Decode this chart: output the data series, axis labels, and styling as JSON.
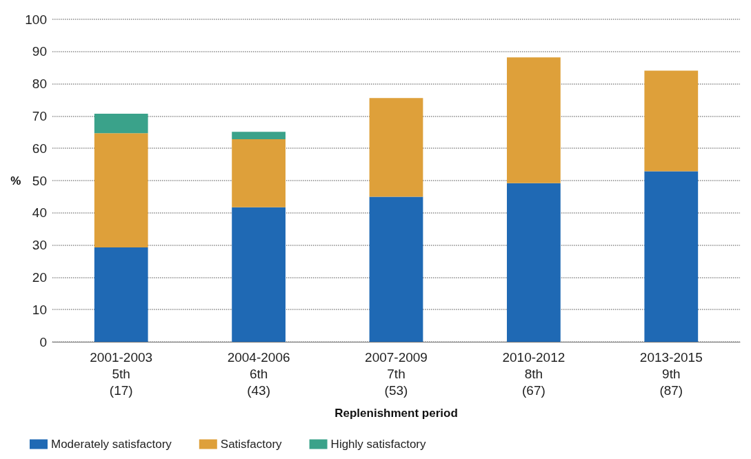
{
  "chart_data": {
    "type": "bar",
    "stacked": true,
    "xlabel": "Replenishment period",
    "ylabel": "%",
    "categories": [
      "2001-2003\n5th\n(17)",
      "2004-2006\n6th\n(43)",
      "2007-2009\n7th\n(53)",
      "2010-2012\n8th\n(67)",
      "2013-2015\n9th\n(87)"
    ],
    "series": [
      {
        "name": "Moderately satisfactory",
        "color": "#1f69b4",
        "values": [
          29.3,
          41.7,
          45.0,
          49.2,
          52.9
        ]
      },
      {
        "name": "Satisfactory",
        "color": "#dea03a",
        "values": [
          35.4,
          21.1,
          30.6,
          39.0,
          31.2
        ]
      },
      {
        "name": "Highly satisfactory",
        "color": "#3aa28a",
        "values": [
          6.0,
          2.3,
          null,
          null,
          null
        ]
      }
    ],
    "ylim": [
      0,
      100
    ],
    "yticks": [
      0,
      10,
      20,
      30,
      40,
      50,
      60,
      70,
      80,
      90,
      100
    ],
    "grid": "y",
    "legend": "bottom left"
  }
}
